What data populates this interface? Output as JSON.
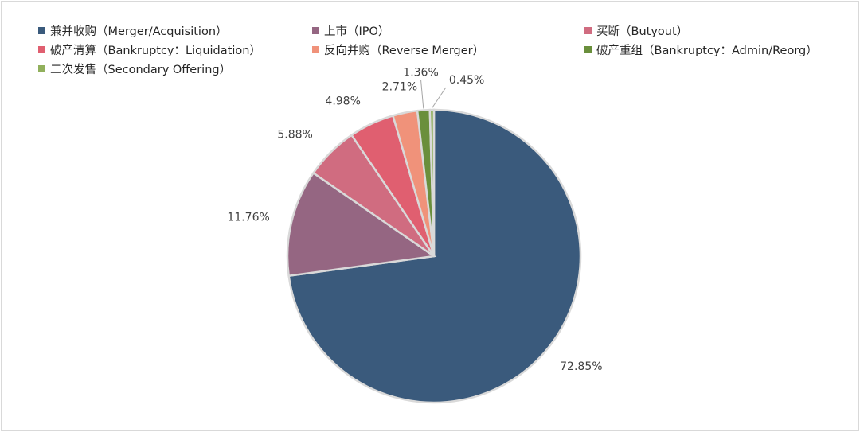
{
  "chart_data": {
    "type": "pie",
    "title": "",
    "categories": [
      "兼并收购（Merger/Acquisition）",
      "上市（IPO）",
      "买断（Butyout）",
      "破产清算（Bankruptcy：Liquidation）",
      "反向并购（Reverse Merger）",
      "破产重组（Bankruptcy：Admin/Reorg）",
      "二次发售（Secondary Offering）"
    ],
    "values": [
      72.85,
      11.76,
      5.88,
      4.98,
      2.71,
      1.36,
      0.45
    ],
    "value_labels": [
      "72.85%",
      "11.76%",
      "5.88%",
      "4.98%",
      "2.71%",
      "1.36%",
      "0.45%"
    ],
    "colors": [
      "#3a5a7c",
      "#956682",
      "#d06c80",
      "#e05f70",
      "#f0927a",
      "#6a8f3c",
      "#91b05c"
    ],
    "legend_position": "top"
  }
}
